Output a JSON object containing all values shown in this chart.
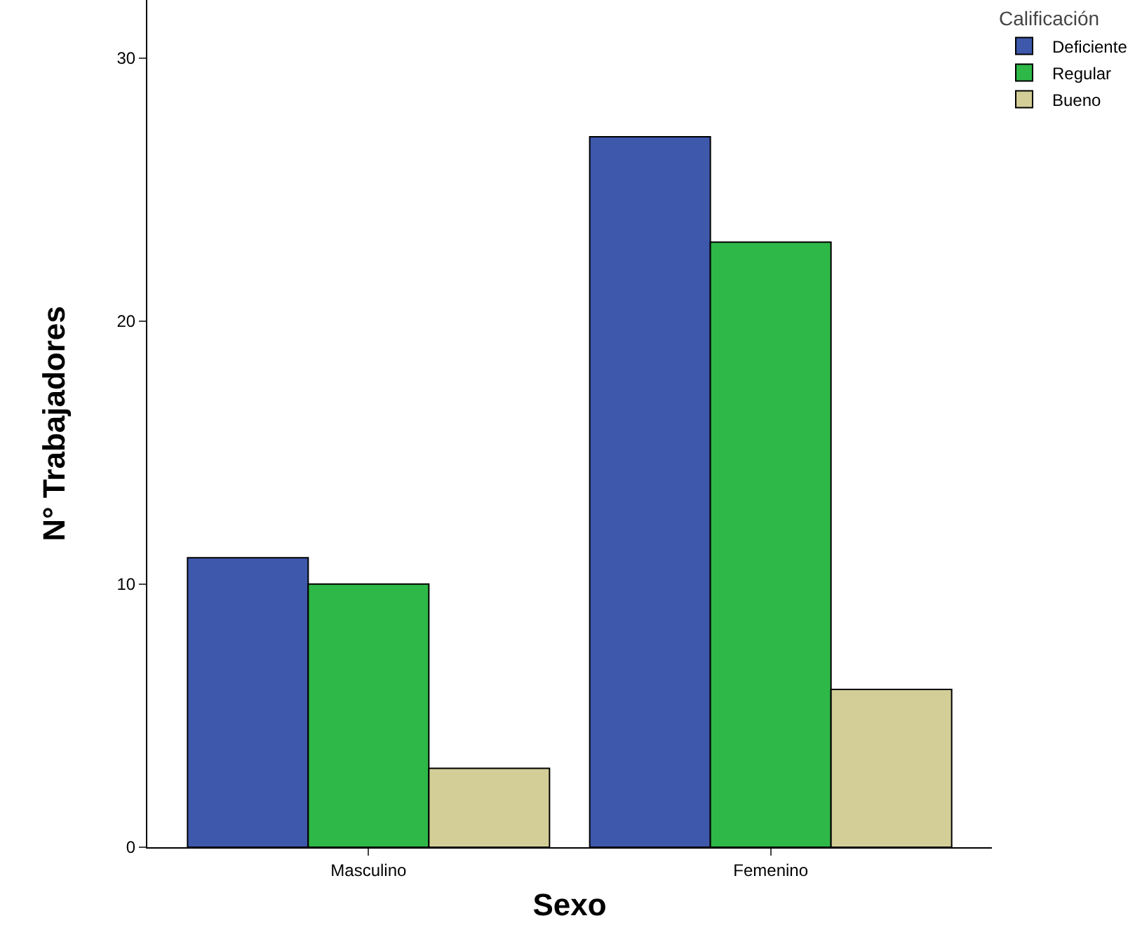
{
  "chart_data": {
    "type": "bar",
    "xlabel": "Sexo",
    "ylabel": "N° Trabajadores",
    "legend_title": "Calificación",
    "categories": [
      "Masculino",
      "Femenino"
    ],
    "series": [
      {
        "name": "Deficiente",
        "color": "#3e58ac",
        "values": [
          11,
          27
        ]
      },
      {
        "name": "Regular",
        "color": "#2eb848",
        "values": [
          10,
          23
        ]
      },
      {
        "name": "Bueno",
        "color": "#d3ce97",
        "values": [
          3,
          6
        ]
      }
    ],
    "ylim": [
      0,
      32.2
    ],
    "yticks": [
      0,
      10,
      20,
      30
    ],
    "legend": "top right"
  }
}
